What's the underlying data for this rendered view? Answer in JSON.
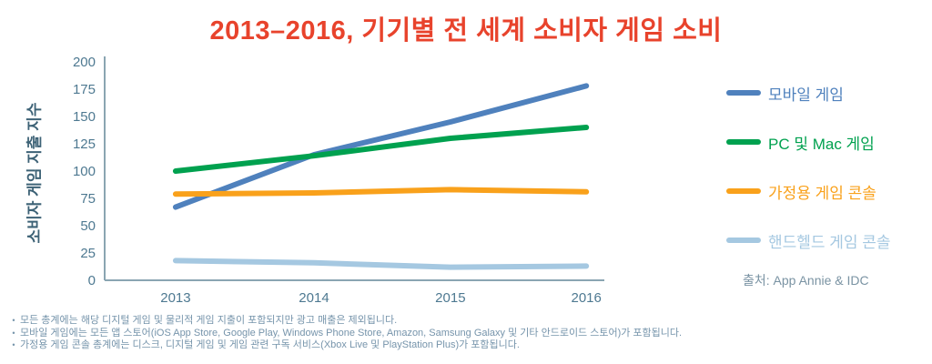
{
  "title": "2013–2016, 기기별 전 세계 소비자 게임 소비",
  "source_note": "출처: App Annie & IDC",
  "footnotes": [
    "모든 총계에는 해당 디지털 게임 및 물리적 게임 지출이 포함되지만 광고 매출은 제외됩니다.",
    "모바일 게임에는 모든 앱 스토어(iOS App Store, Google Play, Windows Phone Store, Amazon, Samsung Galaxy 및 기타 안드로이드 스토어)가 포함됩니다.",
    "가정용 게임 콘솔 총계에는 디스크, 디지털 게임 및 게임 관련 구독 서비스(Xbox Live 및 PlayStation Plus)가 포함됩니다."
  ],
  "chart_data": {
    "type": "line",
    "x": [
      "2013",
      "2014",
      "2015",
      "2016"
    ],
    "series": [
      {
        "name": "모바일 게임",
        "color": "#4f81bd",
        "values": [
          67,
          115,
          145,
          178
        ]
      },
      {
        "name": "PC 및 Mac 게임",
        "color": "#00a14f",
        "values": [
          100,
          114,
          130,
          140
        ]
      },
      {
        "name": "가정용 게임 콘솔",
        "color": "#f9a11b",
        "values": [
          79,
          80,
          83,
          81
        ]
      },
      {
        "name": "핸드헬드 게임 콘솔",
        "color": "#a5c8e1",
        "values": [
          18,
          16,
          12,
          13
        ]
      }
    ],
    "title": "2013–2016, 기기별 전 세계 소비자 게임 소비",
    "xlabel": "",
    "ylabel": "소비자 게임 지출 지수",
    "ylim": [
      0,
      200
    ],
    "yticks": [
      0,
      25,
      50,
      75,
      100,
      125,
      150,
      175,
      200
    ],
    "grid": false,
    "legend_position": "right"
  },
  "colors": {
    "title": "#e8432c",
    "axis": "#8aa5b2",
    "tick_label": "#4e7991",
    "y_axis_title": "#3d6276",
    "legend_default": "#4e7991",
    "source": "#7a93a3",
    "footnote": "#7694ab"
  }
}
